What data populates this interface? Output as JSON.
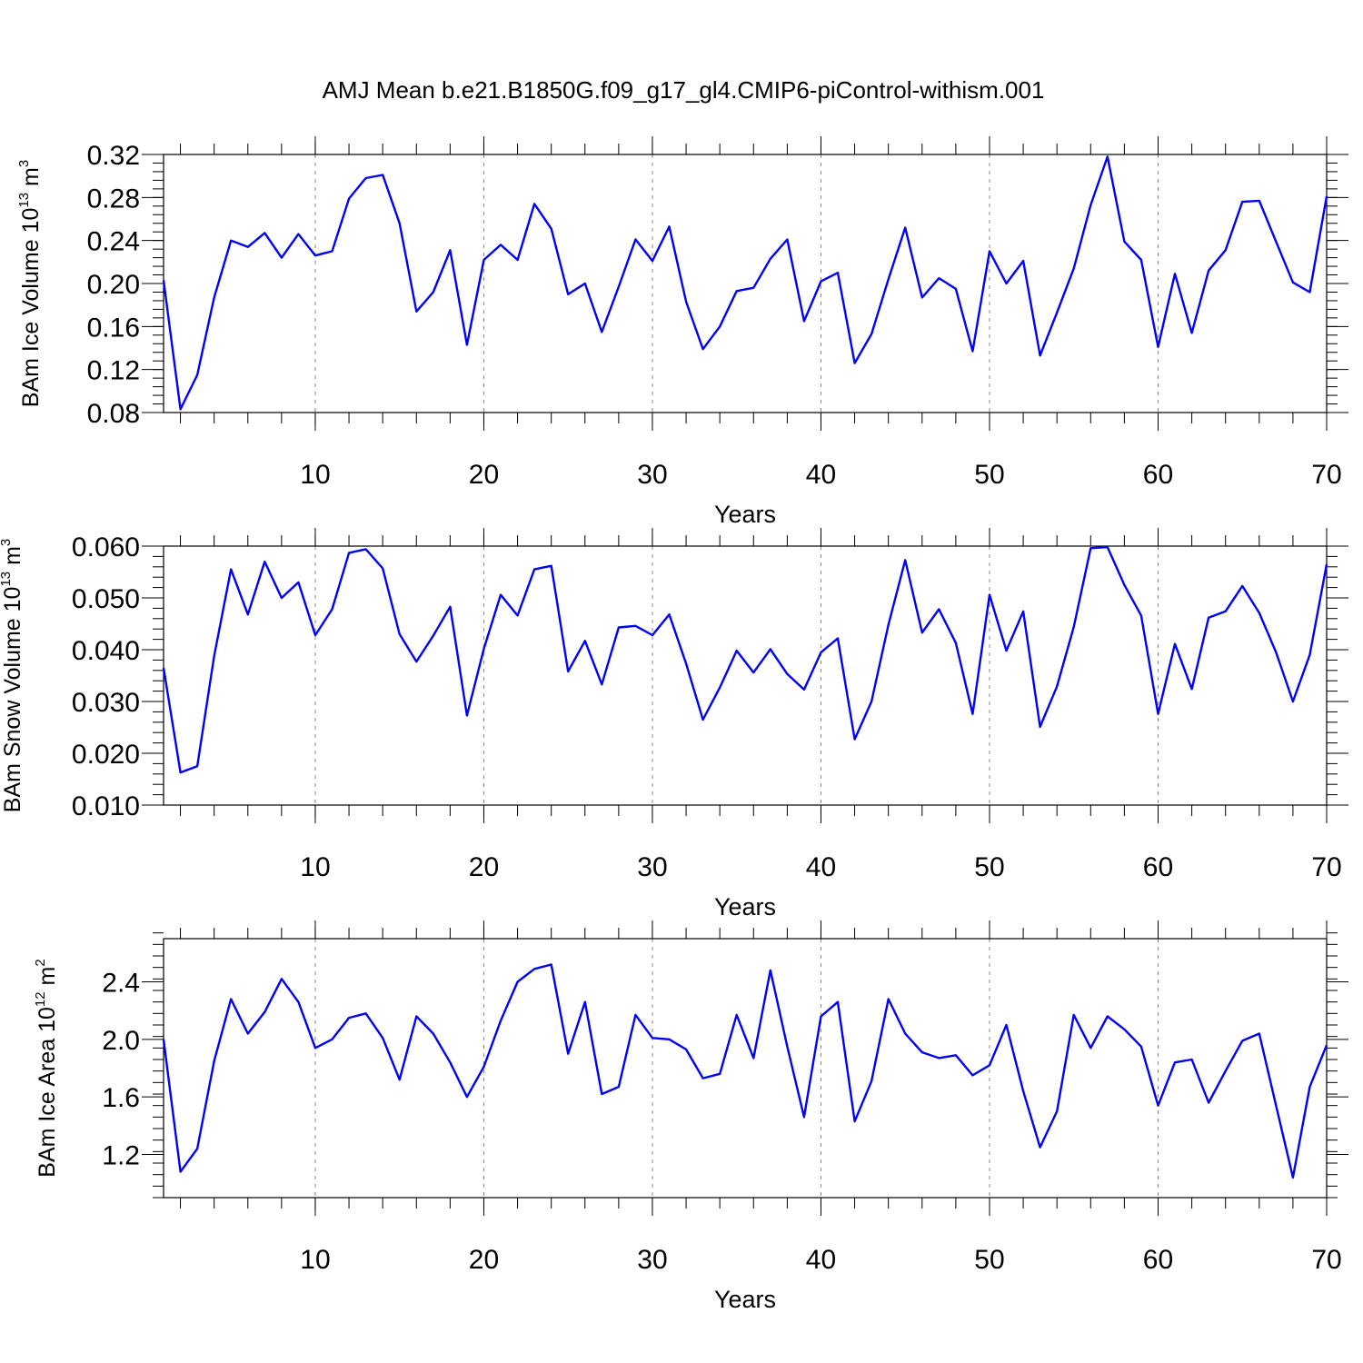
{
  "title": "AMJ Mean b.e21.B1850G.f09_g17_gl4.CMIP6-piControl-withism.001",
  "colors": {
    "line": "#0000ff",
    "axis": "#000000",
    "grid": "#888888"
  },
  "chart_data": [
    {
      "type": "line",
      "name": "ice-volume",
      "ylabel": {
        "main": "BAm Ice Volume 10",
        "exp": "13",
        "unit": " m",
        "unit_exp": "3"
      },
      "xlabel": "Years",
      "xlim": [
        1,
        70
      ],
      "ylim": [
        0.08,
        0.32
      ],
      "xticks": [
        10,
        20,
        30,
        40,
        50,
        60,
        70
      ],
      "xtick_labels": [
        "10",
        "20",
        "30",
        "40",
        "50",
        "60",
        "70"
      ],
      "yticks": [
        0.08,
        0.12,
        0.16,
        0.2,
        0.24,
        0.28,
        0.32
      ],
      "ytick_labels": [
        "0.08",
        "0.12",
        "0.16",
        "0.20",
        "0.24",
        "0.28",
        "0.32"
      ],
      "yminor": 0.008,
      "grid_x": [
        10,
        20,
        30,
        40,
        50,
        60
      ],
      "x": [
        1,
        2,
        3,
        4,
        5,
        6,
        7,
        8,
        9,
        10,
        11,
        12,
        13,
        14,
        15,
        16,
        17,
        18,
        19,
        20,
        21,
        22,
        23,
        24,
        25,
        26,
        27,
        28,
        29,
        30,
        31,
        32,
        33,
        34,
        35,
        36,
        37,
        38,
        39,
        40,
        41,
        42,
        43,
        44,
        45,
        46,
        47,
        48,
        49,
        50,
        51,
        52,
        53,
        54,
        55,
        56,
        57,
        58,
        59,
        60,
        61,
        62,
        63,
        64,
        65,
        66,
        67,
        68,
        69,
        70
      ],
      "values": [
        0.203,
        0.083,
        0.115,
        0.187,
        0.24,
        0.234,
        0.247,
        0.224,
        0.246,
        0.226,
        0.23,
        0.279,
        0.298,
        0.301,
        0.256,
        0.174,
        0.192,
        0.231,
        0.143,
        0.222,
        0.236,
        0.222,
        0.274,
        0.251,
        0.19,
        0.2,
        0.155,
        0.197,
        0.241,
        0.221,
        0.253,
        0.183,
        0.139,
        0.16,
        0.193,
        0.196,
        0.223,
        0.241,
        0.165,
        0.202,
        0.21,
        0.126,
        0.153,
        0.204,
        0.252,
        0.187,
        0.205,
        0.195,
        0.137,
        0.23,
        0.2,
        0.221,
        0.133,
        0.173,
        0.214,
        0.273,
        0.318,
        0.239,
        0.222,
        0.141,
        0.209,
        0.154,
        0.212,
        0.231,
        0.276,
        0.277,
        0.239,
        0.201,
        0.192,
        0.281
      ]
    },
    {
      "type": "line",
      "name": "snow-volume",
      "ylabel": {
        "main": "BAm Snow Volume 10",
        "exp": "13",
        "unit": " m",
        "unit_exp": "3"
      },
      "xlabel": "Years",
      "xlim": [
        1,
        70
      ],
      "ylim": [
        0.01,
        0.06
      ],
      "xticks": [
        10,
        20,
        30,
        40,
        50,
        60,
        70
      ],
      "xtick_labels": [
        "10",
        "20",
        "30",
        "40",
        "50",
        "60",
        "70"
      ],
      "yticks": [
        0.01,
        0.02,
        0.03,
        0.04,
        0.05,
        0.06
      ],
      "ytick_labels": [
        "0.010",
        "0.020",
        "0.030",
        "0.040",
        "0.050",
        "0.060"
      ],
      "yminor": 0.002,
      "grid_x": [
        10,
        20,
        30,
        40,
        50,
        60
      ],
      "x": [
        1,
        2,
        3,
        4,
        5,
        6,
        7,
        8,
        9,
        10,
        11,
        12,
        13,
        14,
        15,
        16,
        17,
        18,
        19,
        20,
        21,
        22,
        23,
        24,
        25,
        26,
        27,
        28,
        29,
        30,
        31,
        32,
        33,
        34,
        35,
        36,
        37,
        38,
        39,
        40,
        41,
        42,
        43,
        44,
        45,
        46,
        47,
        48,
        49,
        50,
        51,
        52,
        53,
        54,
        55,
        56,
        57,
        58,
        59,
        60,
        61,
        62,
        63,
        64,
        65,
        66,
        67,
        68,
        69,
        70
      ],
      "values": [
        0.0365,
        0.0163,
        0.0175,
        0.0388,
        0.0555,
        0.0468,
        0.057,
        0.05,
        0.053,
        0.0428,
        0.0478,
        0.0587,
        0.0594,
        0.0557,
        0.043,
        0.0377,
        0.0427,
        0.0483,
        0.0273,
        0.0402,
        0.0506,
        0.0466,
        0.0555,
        0.0562,
        0.0358,
        0.0417,
        0.0333,
        0.0443,
        0.0446,
        0.0428,
        0.0468,
        0.0373,
        0.0265,
        0.0327,
        0.0398,
        0.0356,
        0.0401,
        0.0353,
        0.0323,
        0.0395,
        0.0422,
        0.0227,
        0.03,
        0.0448,
        0.0573,
        0.0433,
        0.0478,
        0.0413,
        0.0276,
        0.0506,
        0.0398,
        0.0474,
        0.0251,
        0.0329,
        0.0444,
        0.0596,
        0.0598,
        0.0525,
        0.0466,
        0.0276,
        0.0411,
        0.0324,
        0.0462,
        0.0474,
        0.0523,
        0.0471,
        0.0395,
        0.03,
        0.039,
        0.0565
      ]
    },
    {
      "type": "line",
      "name": "ice-area",
      "ylabel": {
        "main": "BAm Ice Area 10",
        "exp": "12",
        "unit": " m",
        "unit_exp": "2"
      },
      "xlabel": "Years",
      "xlim": [
        1,
        70
      ],
      "ylim": [
        0.9,
        2.7
      ],
      "xticks": [
        10,
        20,
        30,
        40,
        50,
        60,
        70
      ],
      "xtick_labels": [
        "10",
        "20",
        "30",
        "40",
        "50",
        "60",
        "70"
      ],
      "yticks": [
        1.2,
        1.6,
        2.0,
        2.4
      ],
      "ytick_labels": [
        "1.2",
        "1.6",
        "2.0",
        "2.4"
      ],
      "yminor": 0.08,
      "grid_x": [
        10,
        20,
        30,
        40,
        50,
        60
      ],
      "x": [
        1,
        2,
        3,
        4,
        5,
        6,
        7,
        8,
        9,
        10,
        11,
        12,
        13,
        14,
        15,
        16,
        17,
        18,
        19,
        20,
        21,
        22,
        23,
        24,
        25,
        26,
        27,
        28,
        29,
        30,
        31,
        32,
        33,
        34,
        35,
        36,
        37,
        38,
        39,
        40,
        41,
        42,
        43,
        44,
        45,
        46,
        47,
        48,
        49,
        50,
        51,
        52,
        53,
        54,
        55,
        56,
        57,
        58,
        59,
        60,
        61,
        62,
        63,
        64,
        65,
        66,
        67,
        68,
        69,
        70
      ],
      "values": [
        2.0,
        1.08,
        1.24,
        1.85,
        2.28,
        2.04,
        2.19,
        2.42,
        2.26,
        1.94,
        2.0,
        2.15,
        2.18,
        2.01,
        1.72,
        2.16,
        2.04,
        1.84,
        1.6,
        1.81,
        2.13,
        2.4,
        2.49,
        2.52,
        1.9,
        2.26,
        1.62,
        1.67,
        2.17,
        2.01,
        2.0,
        1.93,
        1.73,
        1.76,
        2.17,
        1.87,
        2.48,
        1.95,
        1.46,
        2.16,
        2.26,
        1.43,
        1.71,
        2.28,
        2.04,
        1.91,
        1.87,
        1.89,
        1.75,
        1.82,
        2.1,
        1.64,
        1.25,
        1.5,
        2.17,
        1.94,
        2.16,
        2.07,
        1.95,
        1.54,
        1.84,
        1.86,
        1.56,
        1.78,
        1.99,
        2.04,
        1.54,
        1.04,
        1.67,
        1.96
      ]
    }
  ]
}
